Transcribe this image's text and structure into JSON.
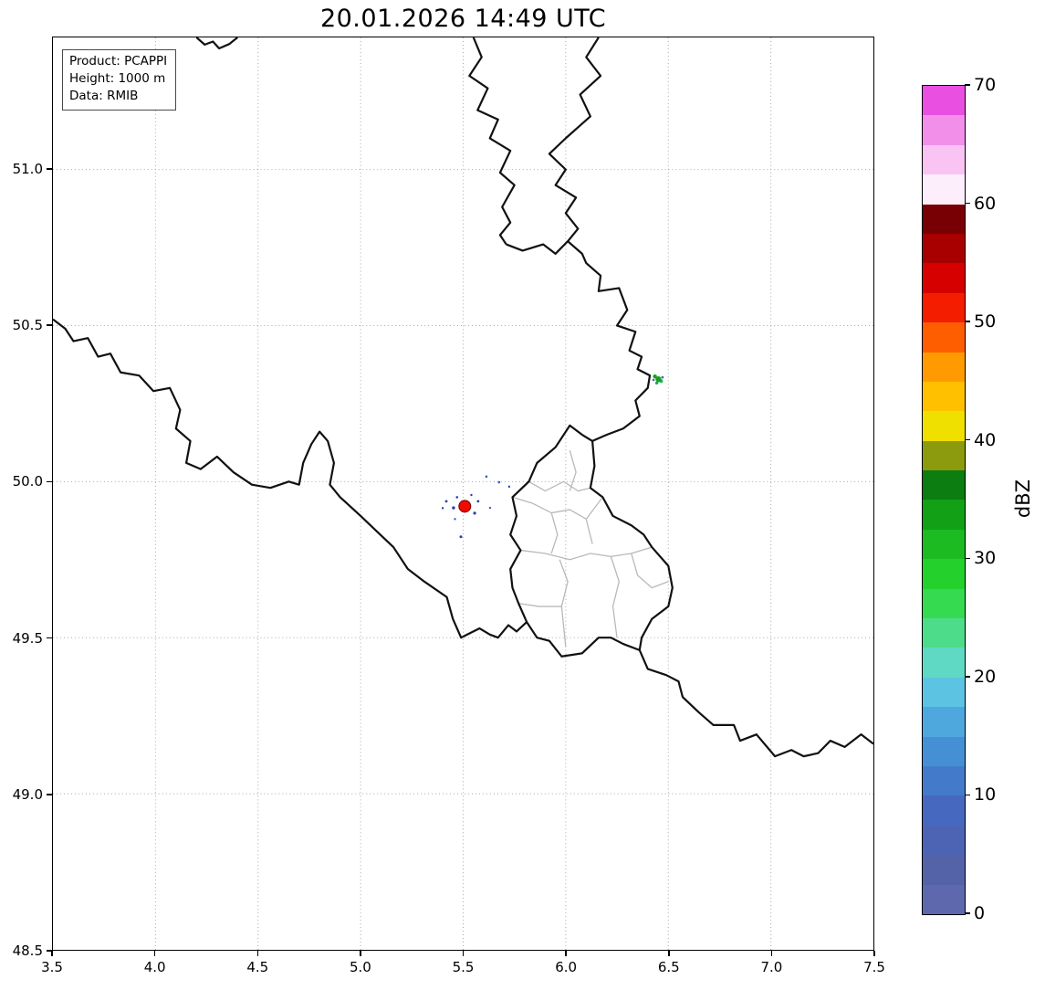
{
  "figure": {
    "title": "20.01.2026 14:49 UTC",
    "background": "#ffffff"
  },
  "info_box": {
    "lines": [
      "Product: PCAPPI",
      "Height: 1000 m",
      "Data: RMIB"
    ]
  },
  "chart_data": {
    "type": "heatmap",
    "subtype": "weather-radar-map",
    "title": "20.01.2026 14:49 UTC",
    "product": "PCAPPI",
    "height": "1000 m",
    "source": "RMIB",
    "xlim": [
      3.5,
      7.5
    ],
    "ylim": [
      48.5,
      51.423
    ],
    "xticks": [
      3.5,
      4.0,
      4.5,
      5.0,
      5.5,
      6.0,
      6.5,
      7.0,
      7.5
    ],
    "yticks": [
      48.5,
      49.0,
      49.5,
      50.0,
      50.5,
      51.0
    ],
    "grid": "dotted",
    "grid_color": "#a8a8a8",
    "colorbar": {
      "label": "dBZ",
      "min": 0,
      "max": 70,
      "step": 2.5,
      "ticks": [
        0,
        10,
        20,
        30,
        40,
        50,
        60,
        70
      ],
      "colors": [
        "#5e69ad",
        "#5463a7",
        "#4c64b3",
        "#4669bf",
        "#437bca",
        "#4590d4",
        "#4fa8dd",
        "#5cc3e3",
        "#60d9c4",
        "#4ddc8a",
        "#35da51",
        "#24d12c",
        "#1bbb21",
        "#12a017",
        "#0c7d10",
        "#8c9b0e",
        "#f0e000",
        "#ffc000",
        "#ff9b00",
        "#ff5e00",
        "#f51d00",
        "#d60000",
        "#a80000",
        "#780005",
        "#fdeefb",
        "#f9c4f3",
        "#f28fe9",
        "#e94fe0"
      ]
    },
    "borders": {
      "country_color": "#111111",
      "region_color": "#b9b9b9",
      "countries": [
        [
          [
            4.2,
            51.423
          ],
          [
            4.24,
            51.4
          ],
          [
            4.28,
            51.41
          ],
          [
            4.31,
            51.388
          ],
          [
            4.36,
            51.402
          ],
          [
            4.4,
            51.423
          ]
        ],
        [
          [
            5.55,
            51.423
          ],
          [
            5.59,
            51.36
          ],
          [
            5.53,
            51.3
          ],
          [
            5.62,
            51.26
          ],
          [
            5.57,
            51.19
          ],
          [
            5.67,
            51.16
          ],
          [
            5.63,
            51.1
          ],
          [
            5.73,
            51.06
          ],
          [
            5.68,
            50.99
          ],
          [
            5.75,
            50.95
          ],
          [
            5.69,
            50.88
          ],
          [
            5.73,
            50.83
          ],
          [
            5.68,
            50.79
          ],
          [
            5.71,
            50.76
          ]
        ],
        [
          [
            6.16,
            51.423
          ],
          [
            6.1,
            51.36
          ],
          [
            6.17,
            51.3
          ],
          [
            6.07,
            51.24
          ],
          [
            6.12,
            51.17
          ],
          [
            6.0,
            51.1
          ],
          [
            5.92,
            51.05
          ],
          [
            6.0,
            51.0
          ],
          [
            5.95,
            50.95
          ],
          [
            6.05,
            50.91
          ],
          [
            6.0,
            50.86
          ],
          [
            6.06,
            50.81
          ],
          [
            6.01,
            50.77
          ]
        ],
        [
          [
            5.71,
            50.76
          ],
          [
            5.79,
            50.74
          ],
          [
            5.89,
            50.76
          ],
          [
            5.95,
            50.73
          ],
          [
            6.01,
            50.77
          ],
          [
            6.08,
            50.73
          ],
          [
            6.1,
            50.7
          ],
          [
            6.17,
            50.66
          ],
          [
            6.16,
            50.61
          ],
          [
            6.26,
            50.62
          ],
          [
            6.3,
            50.55
          ],
          [
            6.25,
            50.5
          ],
          [
            6.34,
            50.48
          ],
          [
            6.31,
            50.42
          ],
          [
            6.37,
            50.4
          ],
          [
            6.35,
            50.36
          ],
          [
            6.41,
            50.34
          ],
          [
            6.4,
            50.3
          ],
          [
            6.34,
            50.26
          ],
          [
            6.36,
            50.21
          ],
          [
            6.28,
            50.17
          ],
          [
            6.2,
            50.15
          ],
          [
            6.13,
            50.13
          ]
        ],
        [
          [
            3.5,
            50.52
          ],
          [
            3.56,
            50.49
          ],
          [
            3.6,
            50.45
          ],
          [
            3.67,
            50.46
          ],
          [
            3.72,
            50.4
          ],
          [
            3.78,
            50.41
          ],
          [
            3.83,
            50.35
          ],
          [
            3.92,
            50.34
          ],
          [
            3.99,
            50.29
          ],
          [
            4.07,
            50.3
          ],
          [
            4.12,
            50.23
          ],
          [
            4.1,
            50.17
          ],
          [
            4.17,
            50.13
          ],
          [
            4.15,
            50.06
          ],
          [
            4.22,
            50.04
          ],
          [
            4.3,
            50.08
          ],
          [
            4.38,
            50.03
          ],
          [
            4.47,
            49.99
          ],
          [
            4.56,
            49.98
          ],
          [
            4.65,
            50.0
          ],
          [
            4.7,
            49.99
          ],
          [
            4.72,
            50.06
          ],
          [
            4.76,
            50.12
          ],
          [
            4.8,
            50.16
          ],
          [
            4.84,
            50.13
          ],
          [
            4.87,
            50.06
          ],
          [
            4.85,
            49.99
          ],
          [
            4.9,
            49.95
          ],
          [
            5.0,
            49.89
          ],
          [
            5.08,
            49.84
          ],
          [
            5.16,
            49.79
          ],
          [
            5.23,
            49.72
          ],
          [
            5.31,
            49.68
          ],
          [
            5.42,
            49.63
          ],
          [
            5.45,
            49.56
          ],
          [
            5.49,
            49.5
          ],
          [
            5.58,
            49.53
          ],
          [
            5.63,
            49.51
          ],
          [
            5.67,
            49.5
          ],
          [
            5.72,
            49.54
          ],
          [
            5.76,
            49.52
          ],
          [
            5.81,
            49.55
          ]
        ],
        [
          [
            5.81,
            49.55
          ],
          [
            5.77,
            49.61
          ],
          [
            5.74,
            49.66
          ],
          [
            5.73,
            49.72
          ],
          [
            5.78,
            49.78
          ],
          [
            5.73,
            49.83
          ],
          [
            5.76,
            49.89
          ],
          [
            5.74,
            49.95
          ],
          [
            5.82,
            50.0
          ],
          [
            5.86,
            50.06
          ],
          [
            5.95,
            50.11
          ],
          [
            6.02,
            50.18
          ],
          [
            6.08,
            50.15
          ],
          [
            6.13,
            50.13
          ],
          [
            6.14,
            50.05
          ],
          [
            6.12,
            49.98
          ],
          [
            6.18,
            49.95
          ],
          [
            6.23,
            49.89
          ],
          [
            6.32,
            49.86
          ],
          [
            6.38,
            49.83
          ],
          [
            6.42,
            49.79
          ],
          [
            6.5,
            49.73
          ],
          [
            6.52,
            49.66
          ],
          [
            6.5,
            49.6
          ],
          [
            6.42,
            49.56
          ],
          [
            6.37,
            49.5
          ],
          [
            6.36,
            49.46
          ],
          [
            6.28,
            49.48
          ],
          [
            6.22,
            49.5
          ],
          [
            6.16,
            49.5
          ],
          [
            6.08,
            49.45
          ],
          [
            5.98,
            49.44
          ],
          [
            5.92,
            49.49
          ],
          [
            5.86,
            49.5
          ],
          [
            5.81,
            49.55
          ]
        ],
        [
          [
            6.36,
            49.46
          ],
          [
            6.4,
            49.4
          ],
          [
            6.49,
            49.38
          ],
          [
            6.55,
            49.36
          ],
          [
            6.57,
            49.31
          ],
          [
            6.65,
            49.26
          ],
          [
            6.72,
            49.22
          ],
          [
            6.82,
            49.22
          ],
          [
            6.85,
            49.17
          ],
          [
            6.93,
            49.19
          ],
          [
            7.02,
            49.12
          ],
          [
            7.1,
            49.14
          ],
          [
            7.16,
            49.12
          ],
          [
            7.23,
            49.13
          ],
          [
            7.29,
            49.17
          ],
          [
            7.36,
            49.15
          ],
          [
            7.44,
            49.19
          ],
          [
            7.5,
            49.16
          ]
        ]
      ],
      "regions": [
        [
          [
            5.82,
            50.0
          ],
          [
            5.9,
            49.97
          ],
          [
            5.99,
            50.0
          ],
          [
            6.06,
            49.97
          ],
          [
            6.12,
            49.98
          ]
        ],
        [
          [
            5.74,
            49.95
          ],
          [
            5.84,
            49.93
          ],
          [
            5.93,
            49.9
          ],
          [
            6.02,
            49.91
          ],
          [
            6.1,
            49.88
          ],
          [
            6.18,
            49.95
          ]
        ],
        [
          [
            5.93,
            49.9
          ],
          [
            5.96,
            49.83
          ],
          [
            5.93,
            49.77
          ]
        ],
        [
          [
            5.78,
            49.78
          ],
          [
            5.9,
            49.77
          ],
          [
            6.02,
            49.75
          ],
          [
            6.12,
            49.77
          ],
          [
            6.22,
            49.76
          ],
          [
            6.32,
            49.77
          ],
          [
            6.42,
            49.79
          ]
        ],
        [
          [
            5.97,
            49.75
          ],
          [
            6.01,
            49.68
          ],
          [
            5.98,
            49.6
          ],
          [
            6.0,
            49.47
          ]
        ],
        [
          [
            6.22,
            49.76
          ],
          [
            6.26,
            49.68
          ],
          [
            6.23,
            49.6
          ],
          [
            6.25,
            49.5
          ]
        ],
        [
          [
            5.77,
            49.61
          ],
          [
            5.87,
            49.6
          ],
          [
            5.98,
            49.6
          ]
        ],
        [
          [
            6.32,
            49.77
          ],
          [
            6.35,
            49.7
          ],
          [
            6.42,
            49.66
          ],
          [
            6.5,
            49.68
          ]
        ],
        [
          [
            6.02,
            50.1
          ],
          [
            6.05,
            50.03
          ],
          [
            6.02,
            49.97
          ]
        ],
        [
          [
            6.1,
            49.88
          ],
          [
            6.13,
            49.8
          ]
        ]
      ]
    },
    "echoes": {
      "note": "point echoes [lon, lat, color, radius_px]; strong echo near Wideumont radar at 5.51E 49.92N, small cluster at 6.45E 50.33N",
      "cells": [
        [
          5.418,
          49.937,
          "#2b3fae",
          1.4
        ],
        [
          5.4,
          49.915,
          "#2b3fae",
          1.2
        ],
        [
          5.453,
          49.916,
          "#2b3fae",
          1.7
        ],
        [
          5.47,
          49.95,
          "#2b3fae",
          1.3
        ],
        [
          5.54,
          49.957,
          "#2b3fae",
          1.2
        ],
        [
          5.573,
          49.937,
          "#2b3fae",
          1.4
        ],
        [
          5.556,
          49.899,
          "#2b3fae",
          1.6
        ],
        [
          5.46,
          49.88,
          "#3d5cc4",
          1.2
        ],
        [
          5.489,
          49.823,
          "#2b3fae",
          1.5
        ],
        [
          5.613,
          50.016,
          "#3d5cc4",
          1.3
        ],
        [
          5.675,
          49.998,
          "#3d5cc4",
          1.3
        ],
        [
          5.724,
          49.984,
          "#2b3fae",
          1.2
        ],
        [
          5.631,
          49.916,
          "#3d5cc4",
          1.2
        ],
        [
          6.428,
          50.326,
          "#3a6cc4",
          1.3
        ],
        [
          6.444,
          50.316,
          "#2e9e68",
          1.7
        ],
        [
          6.435,
          50.337,
          "#17a01d",
          2.2
        ],
        [
          6.465,
          50.322,
          "#1db954",
          2.0
        ],
        [
          6.472,
          50.334,
          "#3a6cc4",
          1.4
        ],
        [
          6.452,
          50.328,
          "#17a01d",
          3.2
        ],
        [
          5.508,
          49.921,
          "#ec0c00",
          6.5
        ]
      ]
    }
  }
}
